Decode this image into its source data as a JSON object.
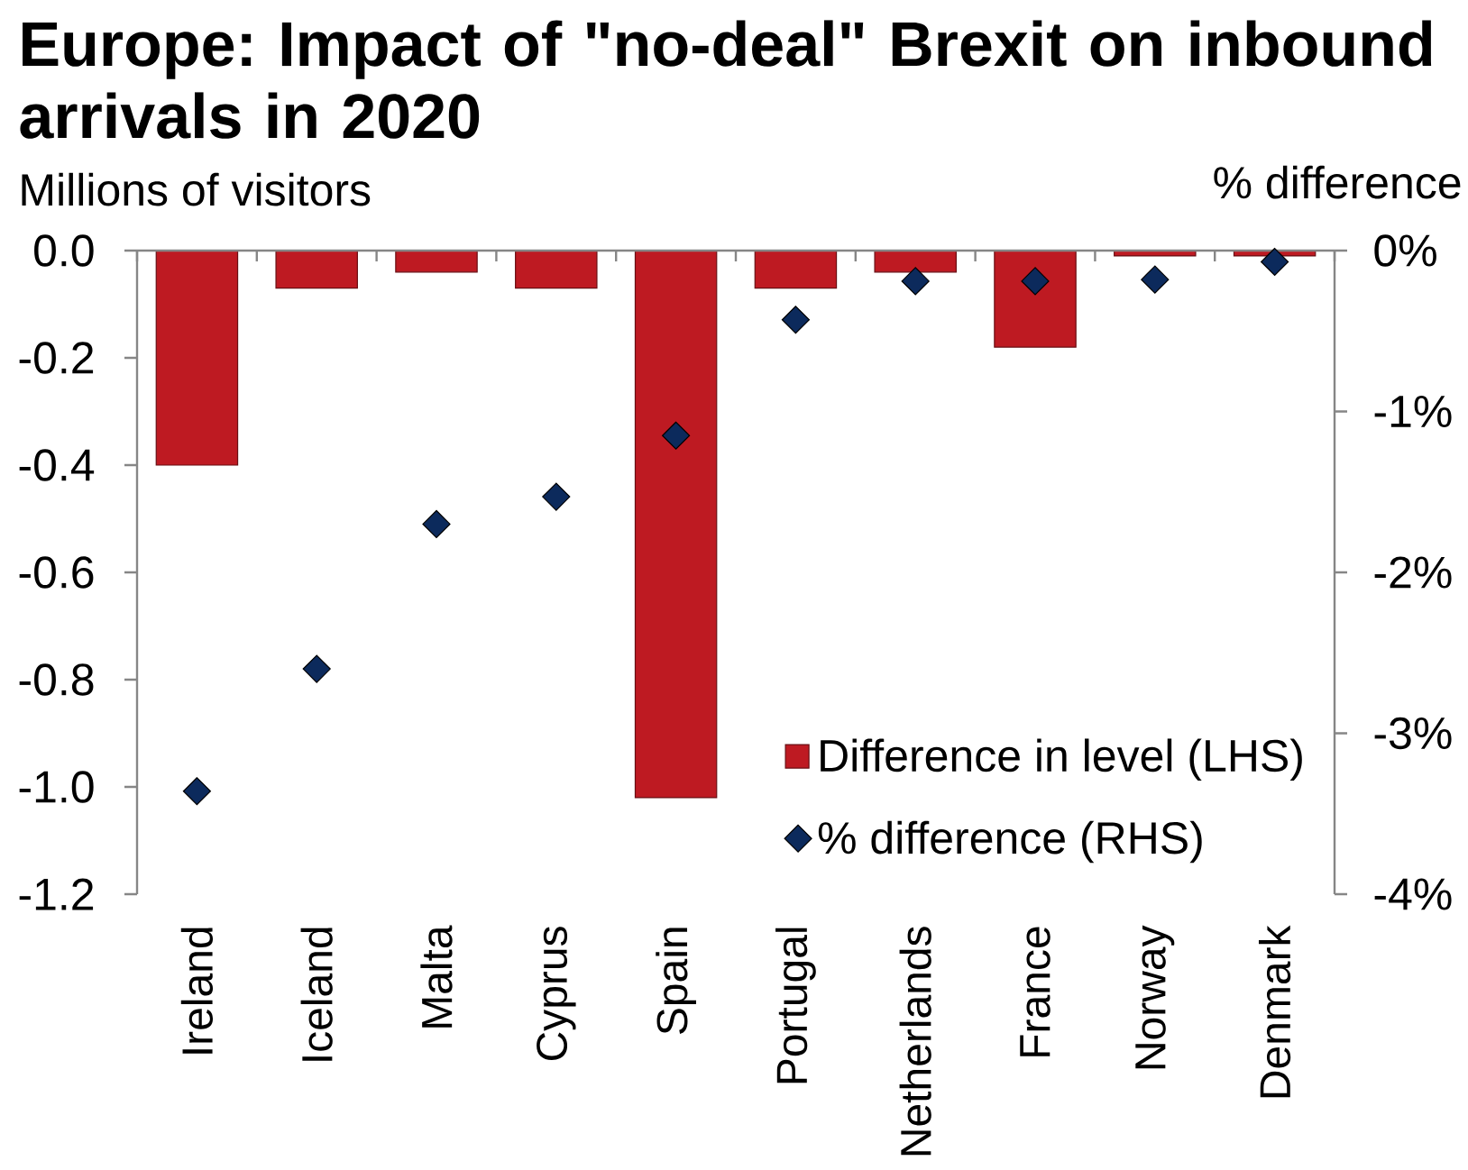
{
  "chart_data": {
    "type": "bar",
    "title": "Europe: Impact of \"no-deal\" Brexit on inbound arrivals in 2020",
    "ylabel": "Millions of visitors",
    "y2label": "% difference",
    "categories": [
      "Ireland",
      "Iceland",
      "Malta",
      "Cyprus",
      "Spain",
      "Portugal",
      "Netherlands",
      "France",
      "Norway",
      "Denmark"
    ],
    "series": [
      {
        "name": "Difference in level (LHS)",
        "color": "#be1a22",
        "values": [
          -0.4,
          -0.07,
          -0.04,
          -0.07,
          -1.02,
          -0.07,
          -0.04,
          -0.18,
          -0.01,
          -0.01
        ]
      },
      {
        "name": "% difference (RHS)",
        "type": "scatter",
        "axis": "y2",
        "marker": "diamond",
        "color": "#0c2a5c",
        "values": [
          -3.36,
          -2.6,
          -1.7,
          -1.53,
          -1.15,
          -0.43,
          -0.19,
          -0.19,
          -0.18,
          -0.07
        ]
      }
    ],
    "ylim": [
      -1.2,
      0
    ],
    "yticks": [
      {
        "value": -1.2,
        "label": "-1.2"
      },
      {
        "value": -1.0,
        "label": "-1.0"
      },
      {
        "value": -0.8,
        "label": "-0.8"
      },
      {
        "value": -0.6,
        "label": "-0.6"
      },
      {
        "value": -0.4,
        "label": "-0.4"
      },
      {
        "value": -0.2,
        "label": "-0.2"
      },
      {
        "value": 0,
        "label": "0.0"
      }
    ],
    "y2lim": [
      -4,
      0
    ],
    "y2ticks": [
      {
        "value": -4,
        "label": "-4%"
      },
      {
        "value": -3,
        "label": "-3%"
      },
      {
        "value": -2,
        "label": "-2%"
      },
      {
        "value": -1,
        "label": "-1%"
      },
      {
        "value": 0,
        "label": "0%"
      }
    ],
    "legend": "bottom right"
  }
}
